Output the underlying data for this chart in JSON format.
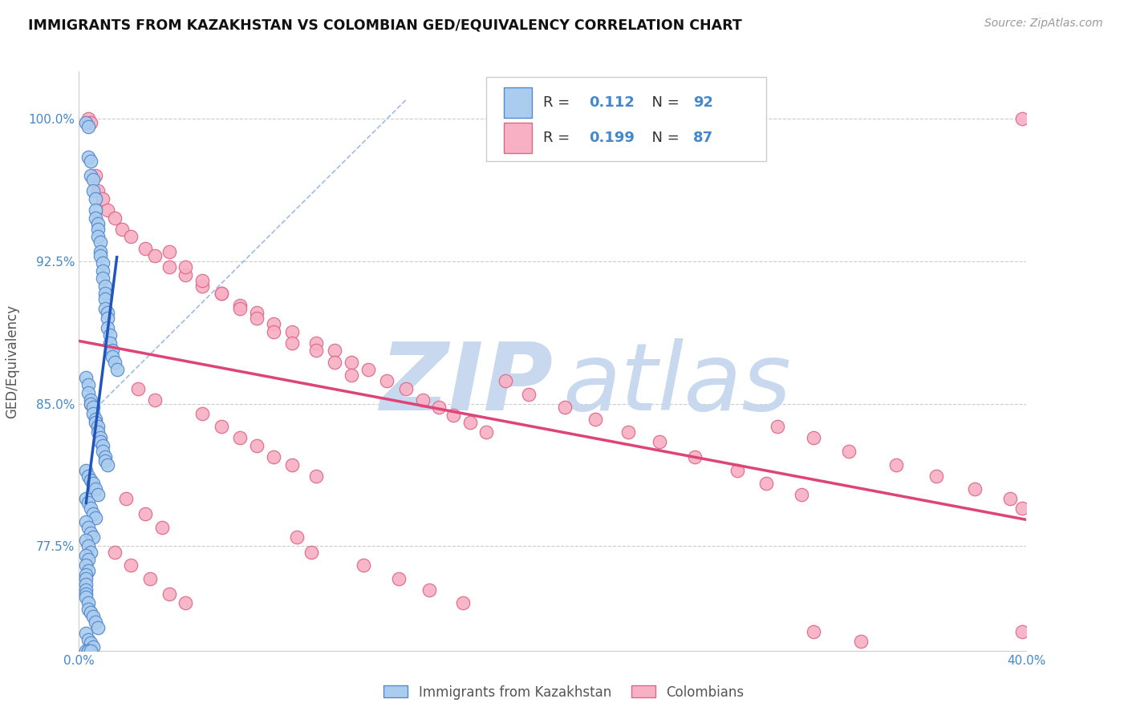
{
  "title": "IMMIGRANTS FROM KAZAKHSTAN VS COLOMBIAN GED/EQUIVALENCY CORRELATION CHART",
  "source": "Source: ZipAtlas.com",
  "ylabel": "GED/Equivalency",
  "xlim": [
    0.0,
    0.4
  ],
  "ylim": [
    0.72,
    1.025
  ],
  "xticks": [
    0.0,
    0.1,
    0.2,
    0.3,
    0.4
  ],
  "xtick_labels": [
    "0.0%",
    "",
    "",
    "",
    "40.0%"
  ],
  "yticks": [
    0.775,
    0.85,
    0.925,
    1.0
  ],
  "ytick_labels": [
    "77.5%",
    "85.0%",
    "92.5%",
    "100.0%"
  ],
  "blue_R": "0.112",
  "blue_N": "92",
  "pink_R": "0.199",
  "pink_N": "87",
  "blue_label": "Immigrants from Kazakhstan",
  "pink_label": "Colombians",
  "tick_color": "#4488cc",
  "grid_color": "#cccccc",
  "blue_dot_facecolor": "#aaccee",
  "blue_dot_edgecolor": "#5588cc",
  "pink_dot_facecolor": "#f8b0c4",
  "pink_dot_edgecolor": "#dd6688",
  "blue_line_color": "#2255bb",
  "pink_line_color": "#dd4477",
  "diag_line_color": "#88aadd",
  "watermark_zip_color": "#c8d8ee",
  "watermark_atlas_color": "#c8d8ee",
  "legend_text_color": "#4488cc",
  "legend_label_color": "#333333",
  "figsize": [
    14.06,
    8.92
  ],
  "dpi": 100,
  "blue_scatter_x": [
    0.003,
    0.004,
    0.004,
    0.005,
    0.005,
    0.006,
    0.006,
    0.007,
    0.007,
    0.007,
    0.008,
    0.008,
    0.008,
    0.009,
    0.009,
    0.009,
    0.01,
    0.01,
    0.01,
    0.011,
    0.011,
    0.011,
    0.011,
    0.012,
    0.012,
    0.012,
    0.013,
    0.013,
    0.014,
    0.014,
    0.015,
    0.016,
    0.003,
    0.004,
    0.004,
    0.005,
    0.005,
    0.006,
    0.006,
    0.007,
    0.007,
    0.008,
    0.008,
    0.009,
    0.009,
    0.01,
    0.01,
    0.011,
    0.011,
    0.012,
    0.003,
    0.004,
    0.005,
    0.006,
    0.007,
    0.008,
    0.003,
    0.004,
    0.005,
    0.006,
    0.007,
    0.003,
    0.004,
    0.005,
    0.006,
    0.003,
    0.004,
    0.005,
    0.003,
    0.004,
    0.003,
    0.004,
    0.003,
    0.003,
    0.003,
    0.003,
    0.003,
    0.003,
    0.004,
    0.004,
    0.005,
    0.006,
    0.007,
    0.008,
    0.003,
    0.004,
    0.005,
    0.006,
    0.003,
    0.004,
    0.004,
    0.005
  ],
  "blue_scatter_y": [
    0.998,
    0.996,
    0.98,
    0.978,
    0.97,
    0.968,
    0.962,
    0.958,
    0.952,
    0.948,
    0.945,
    0.942,
    0.938,
    0.935,
    0.93,
    0.928,
    0.924,
    0.92,
    0.916,
    0.912,
    0.908,
    0.905,
    0.9,
    0.898,
    0.895,
    0.89,
    0.886,
    0.882,
    0.878,
    0.875,
    0.872,
    0.868,
    0.864,
    0.86,
    0.856,
    0.852,
    0.85,
    0.848,
    0.845,
    0.842,
    0.84,
    0.838,
    0.835,
    0.832,
    0.83,
    0.828,
    0.825,
    0.822,
    0.82,
    0.818,
    0.815,
    0.812,
    0.81,
    0.808,
    0.805,
    0.802,
    0.8,
    0.798,
    0.795,
    0.792,
    0.79,
    0.788,
    0.785,
    0.782,
    0.78,
    0.778,
    0.775,
    0.772,
    0.77,
    0.768,
    0.765,
    0.762,
    0.76,
    0.758,
    0.755,
    0.752,
    0.75,
    0.748,
    0.745,
    0.742,
    0.74,
    0.738,
    0.735,
    0.732,
    0.729,
    0.726,
    0.724,
    0.722,
    0.72,
    0.72,
    0.72,
    0.72
  ],
  "pink_scatter_x": [
    0.004,
    0.005,
    0.007,
    0.008,
    0.01,
    0.012,
    0.015,
    0.018,
    0.022,
    0.028,
    0.032,
    0.038,
    0.045,
    0.052,
    0.06,
    0.068,
    0.075,
    0.082,
    0.09,
    0.1,
    0.108,
    0.115,
    0.122,
    0.13,
    0.138,
    0.145,
    0.152,
    0.158,
    0.165,
    0.172,
    0.038,
    0.045,
    0.052,
    0.06,
    0.068,
    0.075,
    0.082,
    0.09,
    0.1,
    0.108,
    0.115,
    0.025,
    0.032,
    0.052,
    0.06,
    0.068,
    0.075,
    0.082,
    0.09,
    0.1,
    0.18,
    0.19,
    0.205,
    0.218,
    0.232,
    0.245,
    0.26,
    0.278,
    0.29,
    0.305,
    0.02,
    0.028,
    0.035,
    0.092,
    0.098,
    0.12,
    0.135,
    0.148,
    0.162,
    0.295,
    0.31,
    0.325,
    0.345,
    0.362,
    0.378,
    0.393,
    0.398,
    0.015,
    0.022,
    0.03,
    0.038,
    0.045,
    0.31,
    0.33,
    0.398,
    0.398,
    0.005
  ],
  "pink_scatter_y": [
    1.0,
    0.998,
    0.97,
    0.962,
    0.958,
    0.952,
    0.948,
    0.942,
    0.938,
    0.932,
    0.928,
    0.922,
    0.918,
    0.912,
    0.908,
    0.902,
    0.898,
    0.892,
    0.888,
    0.882,
    0.878,
    0.872,
    0.868,
    0.862,
    0.858,
    0.852,
    0.848,
    0.844,
    0.84,
    0.835,
    0.93,
    0.922,
    0.915,
    0.908,
    0.9,
    0.895,
    0.888,
    0.882,
    0.878,
    0.872,
    0.865,
    0.858,
    0.852,
    0.845,
    0.838,
    0.832,
    0.828,
    0.822,
    0.818,
    0.812,
    0.862,
    0.855,
    0.848,
    0.842,
    0.835,
    0.83,
    0.822,
    0.815,
    0.808,
    0.802,
    0.8,
    0.792,
    0.785,
    0.78,
    0.772,
    0.765,
    0.758,
    0.752,
    0.745,
    0.838,
    0.832,
    0.825,
    0.818,
    0.812,
    0.805,
    0.8,
    0.795,
    0.772,
    0.765,
    0.758,
    0.75,
    0.745,
    0.73,
    0.725,
    1.0,
    0.73,
    0.85
  ]
}
